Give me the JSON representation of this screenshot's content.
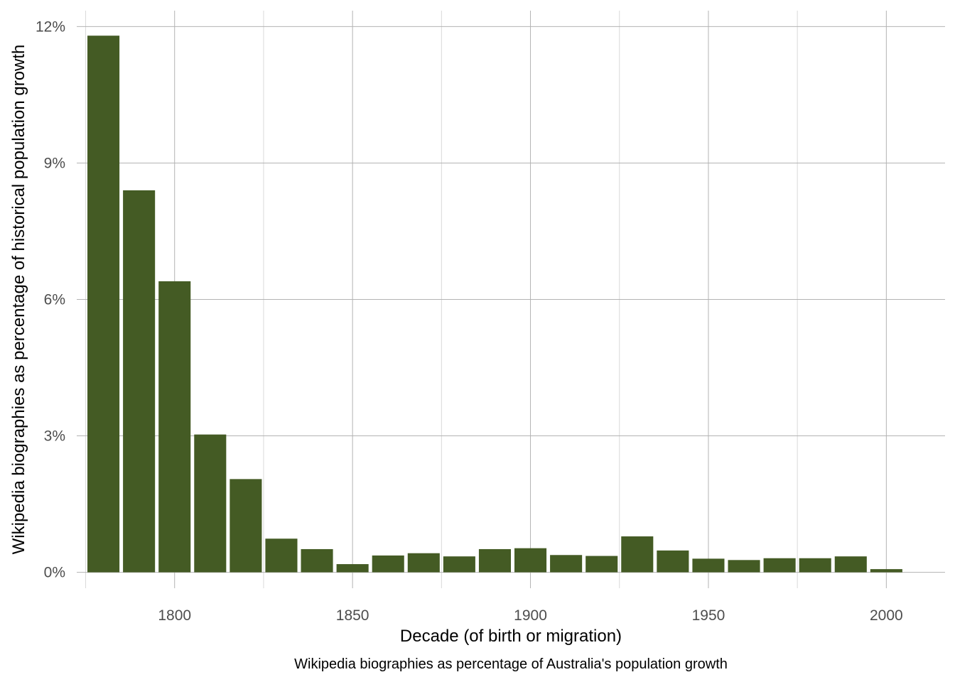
{
  "chart_data": {
    "type": "bar",
    "title": "",
    "xlabel": "Decade (of birth or migration)",
    "ylabel": "Wikipedia biographies as percentage of historical population growth",
    "caption": "Wikipedia biographies as percentage of Australia's population growth",
    "x": [
      1780,
      1790,
      1800,
      1810,
      1820,
      1830,
      1840,
      1850,
      1860,
      1870,
      1880,
      1890,
      1900,
      1910,
      1920,
      1930,
      1940,
      1950,
      1960,
      1970,
      1980,
      1990,
      2000
    ],
    "values": [
      11.8,
      8.4,
      6.4,
      3.03,
      2.05,
      0.74,
      0.51,
      0.18,
      0.37,
      0.42,
      0.35,
      0.51,
      0.53,
      0.38,
      0.36,
      0.79,
      0.48,
      0.3,
      0.27,
      0.31,
      0.31,
      0.35,
      0.07
    ],
    "xlim": [
      1772.5,
      2016.5
    ],
    "ylim": [
      -0.35,
      12.35
    ],
    "x_ticks": [
      1800,
      1850,
      1900,
      1950,
      2000
    ],
    "x_tick_labels": [
      "1800",
      "1850",
      "1900",
      "1950",
      "2000"
    ],
    "y_ticks": [
      0,
      3,
      6,
      9,
      12
    ],
    "y_tick_labels": [
      "0%",
      "3%",
      "6%",
      "9%",
      "12%"
    ],
    "grid": true,
    "legend": "none",
    "colors": {
      "bar": "#445b24",
      "grid_major": "#b3b3b3",
      "grid_minor": "#d9d9d9",
      "tick_text": "#4d4d4d"
    }
  }
}
